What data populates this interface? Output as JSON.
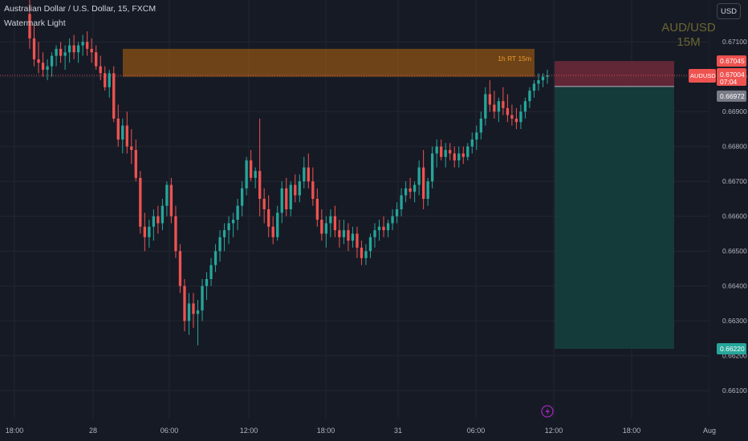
{
  "header": {
    "symbol_line": "Australian Dollar / U.S. Dollar, 15, FXCM",
    "indicator_line": "Watermark Light"
  },
  "currency_button": "USD",
  "watermark": {
    "pair": "AUD/USD",
    "interval": "15M"
  },
  "zone_label": "1h RT 15m",
  "price_labels": {
    "stop": "0.67045",
    "symbol": "AUDUSD",
    "current": "0.67004",
    "countdown": "07:04",
    "entry": "0.66972",
    "target": "0.66220"
  },
  "icons": {
    "event": "lightning-icon"
  },
  "colors": {
    "background": "#161a25",
    "up": "#26a69a",
    "down": "#ef5350",
    "zone": "#b8660f",
    "stop_zone": "#6e2a3a",
    "target_zone": "#153e3d",
    "accent": "#9c27b0"
  },
  "chart_data": {
    "type": "candlestick",
    "title": "Australian Dollar / U.S. Dollar, 15, FXCM",
    "ylim": [
      0.6602,
      0.6722
    ],
    "y_ticks": [
      "0.67100",
      "0.67000",
      "0.66900",
      "0.66800",
      "0.66700",
      "0.66600",
      "0.66500",
      "0.66400",
      "0.66300",
      "0.66200",
      "0.66100"
    ],
    "x_ticks": [
      "18:00",
      "28",
      "06:00",
      "12:00",
      "18:00",
      "31",
      "06:00",
      "12:00",
      "18:00",
      "Aug"
    ],
    "current_price": 0.67004,
    "resistance_zone": {
      "label": "1h RT 15m",
      "low": 0.67,
      "high": 0.6708
    },
    "position": {
      "type": "short",
      "entry": 0.66972,
      "stop": 0.67045,
      "target": 0.6622
    },
    "ohlc": [
      [
        0.6718,
        0.6722,
        0.6708,
        0.6711
      ],
      [
        0.6711,
        0.6715,
        0.6703,
        0.6705
      ],
      [
        0.6705,
        0.671,
        0.6701,
        0.6704
      ],
      [
        0.6704,
        0.6707,
        0.67,
        0.6702
      ],
      [
        0.6702,
        0.6705,
        0.6699,
        0.6703
      ],
      [
        0.6703,
        0.6707,
        0.67,
        0.6706
      ],
      [
        0.6706,
        0.6709,
        0.6703,
        0.6708
      ],
      [
        0.6708,
        0.671,
        0.6704,
        0.6706
      ],
      [
        0.6706,
        0.6709,
        0.6702,
        0.6707
      ],
      [
        0.6707,
        0.6711,
        0.6704,
        0.6709
      ],
      [
        0.6709,
        0.6712,
        0.6705,
        0.6707
      ],
      [
        0.6707,
        0.671,
        0.6704,
        0.6709
      ],
      [
        0.6709,
        0.6712,
        0.6706,
        0.671
      ],
      [
        0.671,
        0.6713,
        0.6706,
        0.6708
      ],
      [
        0.6708,
        0.6711,
        0.6704,
        0.6707
      ],
      [
        0.6707,
        0.6709,
        0.6702,
        0.6703
      ],
      [
        0.6703,
        0.6706,
        0.6699,
        0.6701
      ],
      [
        0.6701,
        0.6703,
        0.6696,
        0.6697
      ],
      [
        0.6697,
        0.6702,
        0.6694,
        0.6701
      ],
      [
        0.6701,
        0.6703,
        0.6687,
        0.6688
      ],
      [
        0.6688,
        0.6692,
        0.668,
        0.6682
      ],
      [
        0.6682,
        0.6688,
        0.6678,
        0.6686
      ],
      [
        0.6686,
        0.669,
        0.6678,
        0.668
      ],
      [
        0.668,
        0.6685,
        0.6675,
        0.6679
      ],
      [
        0.6679,
        0.6682,
        0.667,
        0.6671
      ],
      [
        0.6671,
        0.6673,
        0.6655,
        0.6657
      ],
      [
        0.6657,
        0.6661,
        0.665,
        0.6654
      ],
      [
        0.6654,
        0.6659,
        0.6651,
        0.6657
      ],
      [
        0.6657,
        0.6662,
        0.6653,
        0.666
      ],
      [
        0.666,
        0.6663,
        0.6655,
        0.6658
      ],
      [
        0.6658,
        0.6665,
        0.6656,
        0.6663
      ],
      [
        0.6663,
        0.667,
        0.666,
        0.6669
      ],
      [
        0.6669,
        0.6671,
        0.6658,
        0.666
      ],
      [
        0.666,
        0.6663,
        0.6648,
        0.665
      ],
      [
        0.665,
        0.6652,
        0.6638,
        0.664
      ],
      [
        0.664,
        0.6642,
        0.6627,
        0.663
      ],
      [
        0.663,
        0.6638,
        0.6626,
        0.6635
      ],
      [
        0.6635,
        0.6638,
        0.6628,
        0.6632
      ],
      [
        0.6632,
        0.6636,
        0.6623,
        0.6633
      ],
      [
        0.6633,
        0.6642,
        0.663,
        0.664
      ],
      [
        0.664,
        0.6644,
        0.6636,
        0.6642
      ],
      [
        0.6642,
        0.6648,
        0.664,
        0.6646
      ],
      [
        0.6646,
        0.6652,
        0.6644,
        0.665
      ],
      [
        0.665,
        0.6656,
        0.6647,
        0.6654
      ],
      [
        0.6654,
        0.6658,
        0.665,
        0.6656
      ],
      [
        0.6656,
        0.666,
        0.6652,
        0.6658
      ],
      [
        0.6658,
        0.6661,
        0.6654,
        0.6659
      ],
      [
        0.6659,
        0.6665,
        0.6656,
        0.6663
      ],
      [
        0.6663,
        0.667,
        0.666,
        0.6668
      ],
      [
        0.6668,
        0.6677,
        0.6666,
        0.6676
      ],
      [
        0.6676,
        0.6679,
        0.667,
        0.6671
      ],
      [
        0.6671,
        0.6674,
        0.6668,
        0.6673
      ],
      [
        0.6673,
        0.6688,
        0.666,
        0.6665
      ],
      [
        0.6665,
        0.6668,
        0.6658,
        0.6662
      ],
      [
        0.6662,
        0.6666,
        0.6654,
        0.6657
      ],
      [
        0.6657,
        0.666,
        0.6652,
        0.6654
      ],
      [
        0.6654,
        0.6663,
        0.6653,
        0.6661
      ],
      [
        0.6661,
        0.667,
        0.6658,
        0.6668
      ],
      [
        0.6668,
        0.6671,
        0.666,
        0.6662
      ],
      [
        0.6662,
        0.667,
        0.666,
        0.6669
      ],
      [
        0.6669,
        0.6672,
        0.6664,
        0.6666
      ],
      [
        0.6666,
        0.6672,
        0.6664,
        0.667
      ],
      [
        0.667,
        0.6677,
        0.6668,
        0.6674
      ],
      [
        0.6674,
        0.6678,
        0.6668,
        0.667
      ],
      [
        0.667,
        0.6674,
        0.6663,
        0.6665
      ],
      [
        0.6665,
        0.6668,
        0.6657,
        0.6659
      ],
      [
        0.6659,
        0.6662,
        0.6653,
        0.6655
      ],
      [
        0.6655,
        0.666,
        0.6651,
        0.6658
      ],
      [
        0.6658,
        0.6662,
        0.6654,
        0.666
      ],
      [
        0.666,
        0.6663,
        0.6654,
        0.6656
      ],
      [
        0.6656,
        0.6659,
        0.6651,
        0.6654
      ],
      [
        0.6654,
        0.6659,
        0.6652,
        0.6656
      ],
      [
        0.6656,
        0.6658,
        0.665,
        0.6653
      ],
      [
        0.6653,
        0.6657,
        0.6651,
        0.6655
      ],
      [
        0.6655,
        0.6657,
        0.6648,
        0.6651
      ],
      [
        0.6651,
        0.6653,
        0.6646,
        0.6648
      ],
      [
        0.6648,
        0.6652,
        0.6646,
        0.665
      ],
      [
        0.665,
        0.6655,
        0.6648,
        0.6654
      ],
      [
        0.6654,
        0.6658,
        0.6651,
        0.6656
      ],
      [
        0.6656,
        0.6659,
        0.6653,
        0.6657
      ],
      [
        0.6657,
        0.666,
        0.6654,
        0.6656
      ],
      [
        0.6656,
        0.6659,
        0.6654,
        0.6658
      ],
      [
        0.6658,
        0.6662,
        0.6656,
        0.666
      ],
      [
        0.666,
        0.6664,
        0.6658,
        0.6662
      ],
      [
        0.6662,
        0.6668,
        0.666,
        0.6666
      ],
      [
        0.6666,
        0.667,
        0.6664,
        0.6668
      ],
      [
        0.6668,
        0.6671,
        0.6665,
        0.6667
      ],
      [
        0.6667,
        0.667,
        0.6664,
        0.6669
      ],
      [
        0.6669,
        0.6676,
        0.6666,
        0.6674
      ],
      [
        0.6674,
        0.6679,
        0.6662,
        0.6665
      ],
      [
        0.6665,
        0.6671,
        0.6663,
        0.667
      ],
      [
        0.667,
        0.668,
        0.6668,
        0.6678
      ],
      [
        0.6678,
        0.6682,
        0.6674,
        0.668
      ],
      [
        0.668,
        0.6682,
        0.6676,
        0.6677
      ],
      [
        0.6677,
        0.6681,
        0.6674,
        0.6679
      ],
      [
        0.6679,
        0.6681,
        0.6676,
        0.6678
      ],
      [
        0.6678,
        0.668,
        0.6674,
        0.6676
      ],
      [
        0.6676,
        0.668,
        0.6674,
        0.6678
      ],
      [
        0.6678,
        0.668,
        0.6675,
        0.6677
      ],
      [
        0.6677,
        0.6681,
        0.6676,
        0.668
      ],
      [
        0.668,
        0.6684,
        0.6678,
        0.6682
      ],
      [
        0.6682,
        0.6686,
        0.6679,
        0.6684
      ],
      [
        0.6684,
        0.669,
        0.6682,
        0.6688
      ],
      [
        0.6688,
        0.6697,
        0.6686,
        0.6695
      ],
      [
        0.6695,
        0.6699,
        0.669,
        0.6692
      ],
      [
        0.6692,
        0.6696,
        0.6688,
        0.669
      ],
      [
        0.669,
        0.6694,
        0.6687,
        0.6693
      ],
      [
        0.6693,
        0.6697,
        0.6689,
        0.6691
      ],
      [
        0.6691,
        0.6695,
        0.6687,
        0.6689
      ],
      [
        0.6689,
        0.6692,
        0.6686,
        0.6688
      ],
      [
        0.6688,
        0.6691,
        0.6685,
        0.6687
      ],
      [
        0.6687,
        0.6692,
        0.6685,
        0.669
      ],
      [
        0.669,
        0.6694,
        0.6688,
        0.6693
      ],
      [
        0.6693,
        0.6697,
        0.6691,
        0.6696
      ],
      [
        0.6696,
        0.6699,
        0.6694,
        0.6698
      ],
      [
        0.6698,
        0.6701,
        0.6696,
        0.6699
      ],
      [
        0.6699,
        0.6701,
        0.6697,
        0.67
      ],
      [
        0.67,
        0.6702,
        0.6698,
        0.67004
      ]
    ]
  }
}
